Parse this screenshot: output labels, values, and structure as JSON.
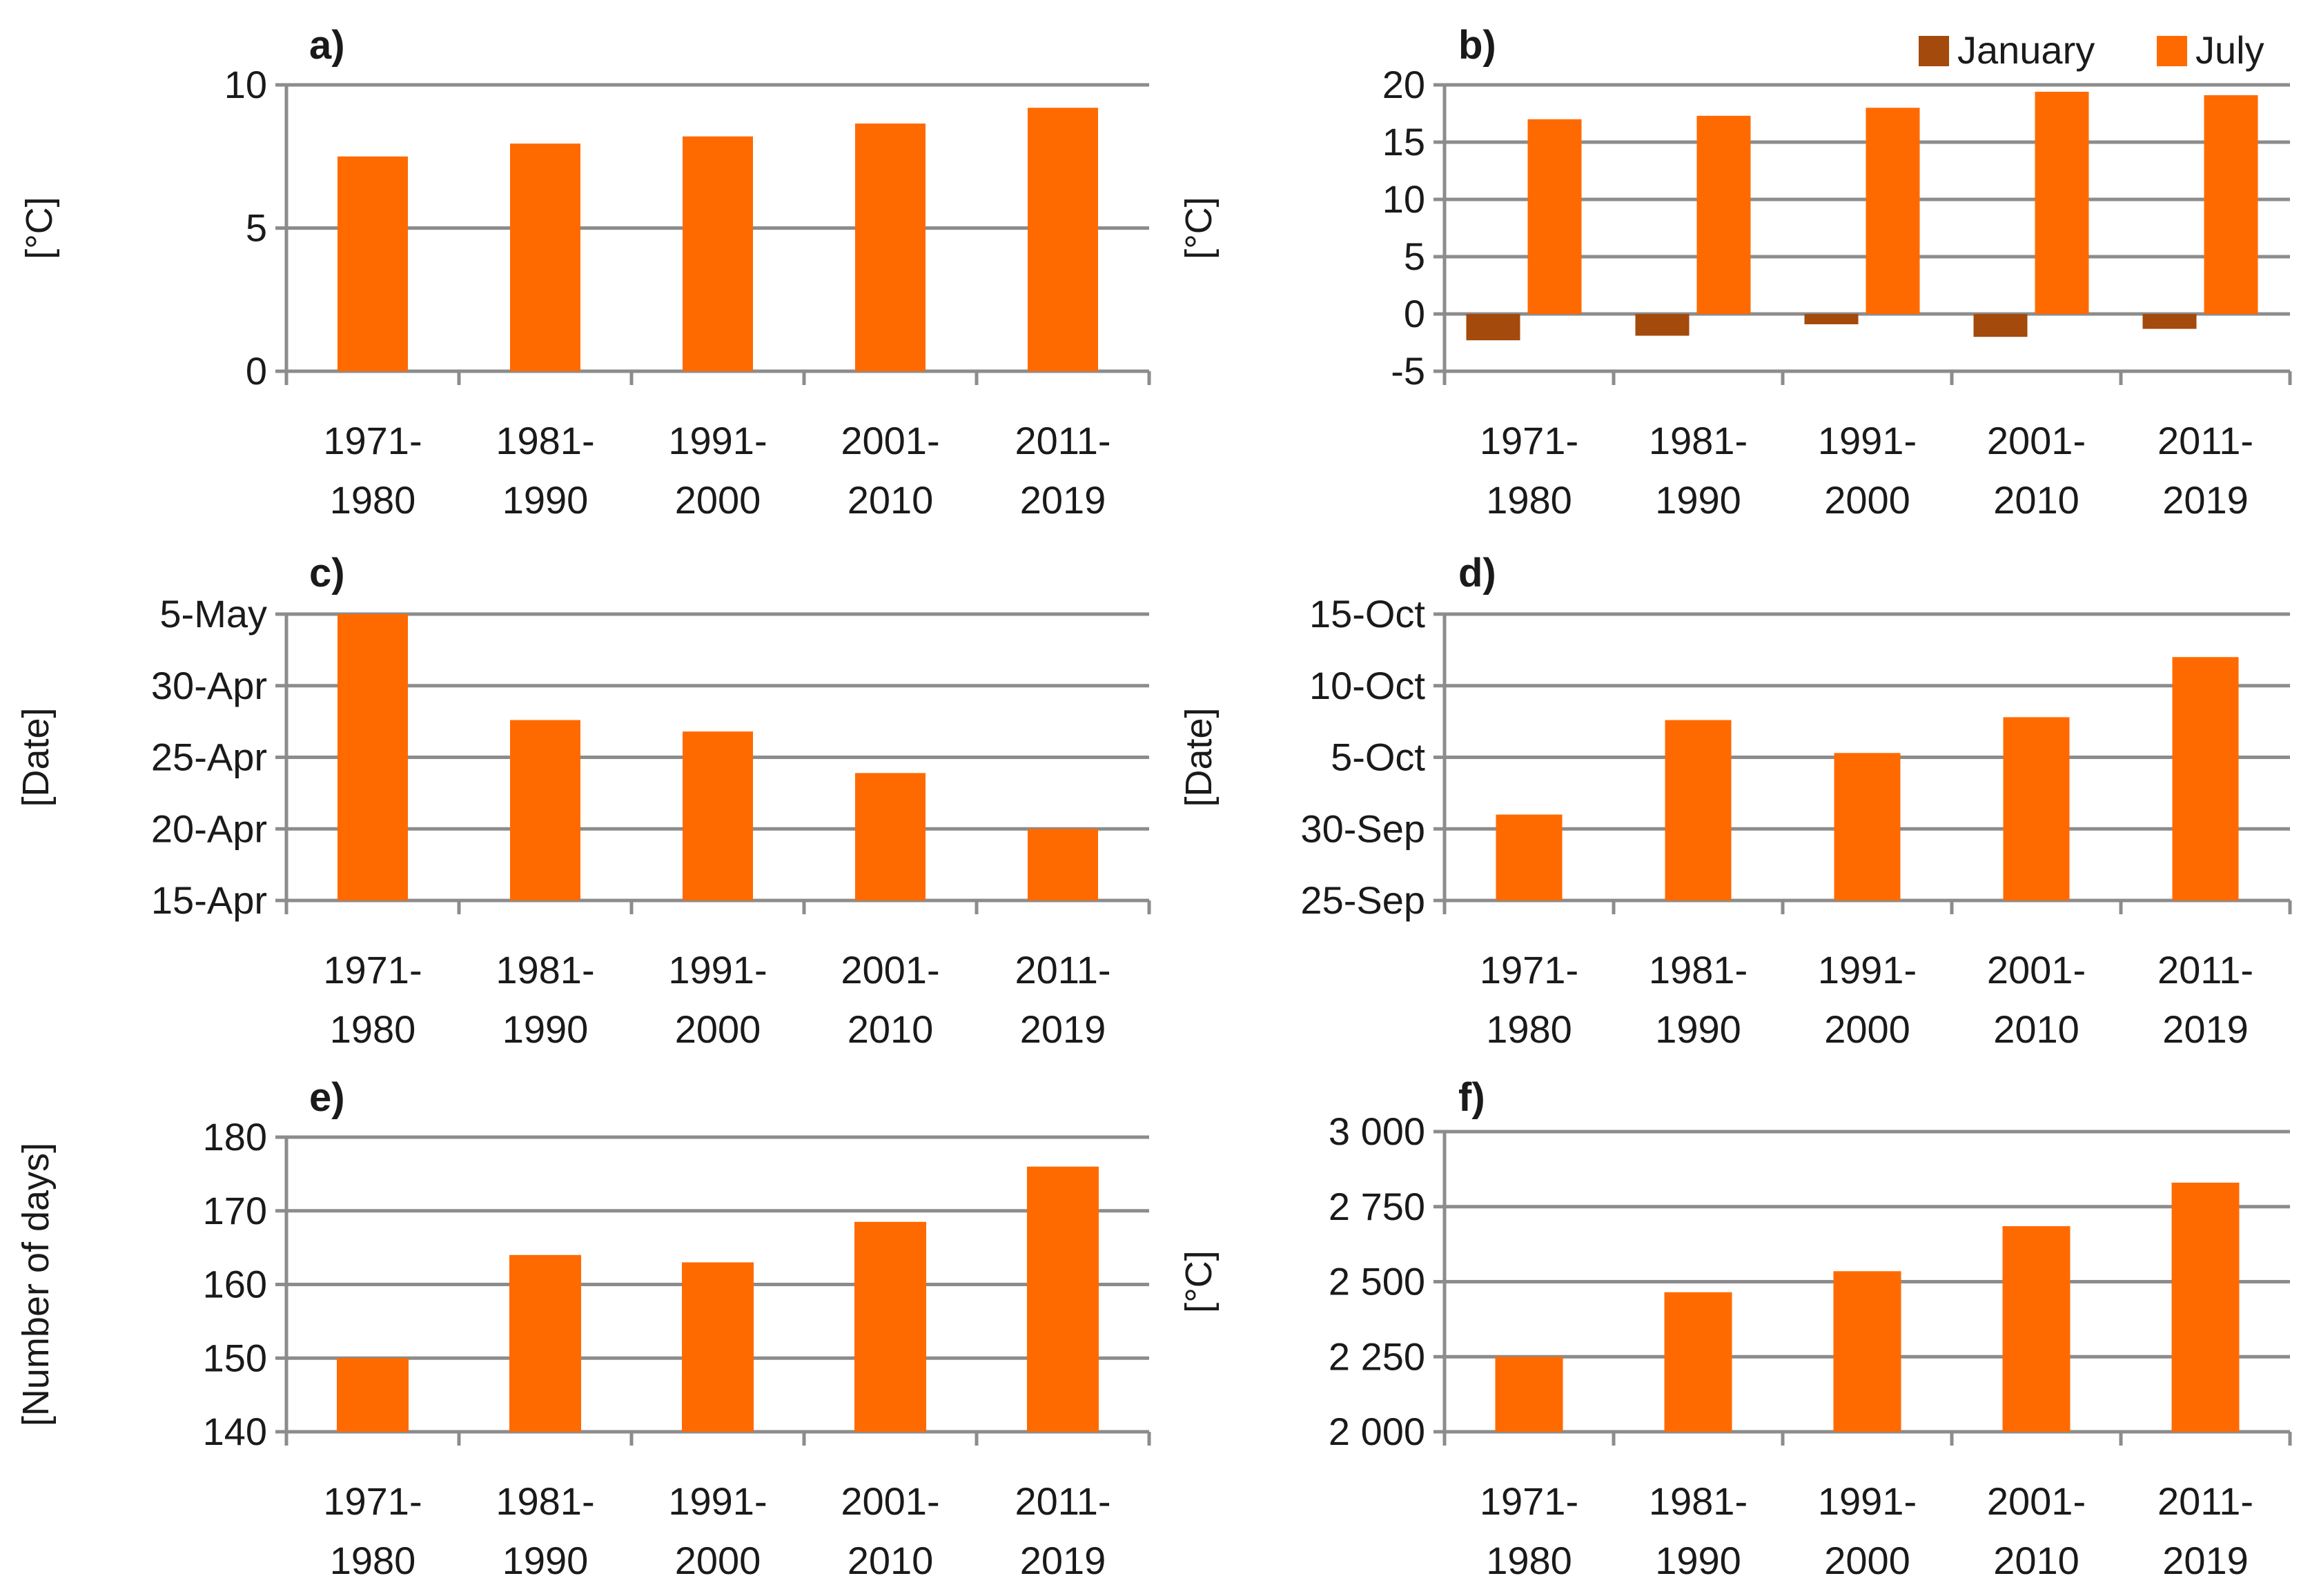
{
  "colors": {
    "primary": "#ff6a00",
    "secondary": "#a34a0c",
    "grid": "#8c8c8c"
  },
  "chart_data": [
    {
      "id": "a",
      "label": "a)",
      "type": "bar",
      "categories": [
        [
          "1971-",
          "1980"
        ],
        [
          "1981-",
          "1990"
        ],
        [
          "1991-",
          "2000"
        ],
        [
          "2001-",
          "2010"
        ],
        [
          "2011-",
          "2019"
        ]
      ],
      "values": [
        7.5,
        7.95,
        8.2,
        8.65,
        9.2
      ],
      "ylabel": "[°C]",
      "ylim": [
        0,
        10
      ],
      "ticks": [
        0,
        5,
        10
      ],
      "tick_labels": [
        "0",
        "5",
        "10"
      ],
      "legend": null
    },
    {
      "id": "b",
      "label": "b)",
      "type": "bar",
      "categories": [
        [
          "1971-",
          "1980"
        ],
        [
          "1981-",
          "1990"
        ],
        [
          "1991-",
          "2000"
        ],
        [
          "2001-",
          "2010"
        ],
        [
          "2011-",
          "2019"
        ]
      ],
      "series": [
        {
          "name": "January",
          "color": "#a34a0c",
          "values": [
            -2.3,
            -1.9,
            -0.9,
            -2.0,
            -1.3
          ]
        },
        {
          "name": "July",
          "color": "#ff6a00",
          "values": [
            17.0,
            17.3,
            18.0,
            19.4,
            19.1
          ]
        }
      ],
      "ylabel": "[°C]",
      "ylim": [
        -5,
        20
      ],
      "ticks": [
        -5,
        0,
        5,
        10,
        15,
        20
      ],
      "tick_labels": [
        "-5",
        "0",
        "5",
        "10",
        "15",
        "20"
      ],
      "legend": "top-right"
    },
    {
      "id": "c",
      "label": "c)",
      "type": "bar",
      "categories": [
        [
          "1971-",
          "1980"
        ],
        [
          "1981-",
          "1990"
        ],
        [
          "1991-",
          "2000"
        ],
        [
          "2001-",
          "2010"
        ],
        [
          "2011-",
          "2019"
        ]
      ],
      "values": [
        125,
        117.6,
        116.8,
        113.9,
        110.0
      ],
      "value_note": "day of year (15-Apr = 105)",
      "ylabel": "[Date]",
      "ylim": [
        105,
        125
      ],
      "ticks": [
        105,
        110,
        115,
        120,
        125
      ],
      "tick_labels": [
        "15-Apr",
        "20-Apr",
        "25-Apr",
        "30-Apr",
        "5-May"
      ],
      "legend": null
    },
    {
      "id": "d",
      "label": "d)",
      "type": "bar",
      "categories": [
        [
          "1971-",
          "1980"
        ],
        [
          "1981-",
          "1990"
        ],
        [
          "1991-",
          "2000"
        ],
        [
          "2001-",
          "2010"
        ],
        [
          "2011-",
          "2019"
        ]
      ],
      "values": [
        274.0,
        280.6,
        278.3,
        280.8,
        285.0
      ],
      "value_note": "day of year (25-Sep = 268)",
      "ylabel": "[Date]",
      "ylim": [
        268,
        288
      ],
      "ticks": [
        268,
        273,
        278,
        283,
        288
      ],
      "tick_labels": [
        "25-Sep",
        "30-Sep",
        "5-Oct",
        "10-Oct",
        "15-Oct"
      ],
      "legend": null
    },
    {
      "id": "e",
      "label": "e)",
      "type": "bar",
      "categories": [
        [
          "1971-",
          "1980"
        ],
        [
          "1981-",
          "1990"
        ],
        [
          "1991-",
          "2000"
        ],
        [
          "2001-",
          "2010"
        ],
        [
          "2011-",
          "2019"
        ]
      ],
      "values": [
        150,
        164,
        163,
        168.5,
        176
      ],
      "ylabel": "[Number of days]",
      "ylim": [
        140,
        180
      ],
      "ticks": [
        140,
        150,
        160,
        170,
        180
      ],
      "tick_labels": [
        "140",
        "150",
        "160",
        "170",
        "180"
      ],
      "legend": null
    },
    {
      "id": "f",
      "label": "f)",
      "type": "bar",
      "categories": [
        [
          "1971-",
          "1980"
        ],
        [
          "1981-",
          "1990"
        ],
        [
          "1991-",
          "2000"
        ],
        [
          "2001-",
          "2010"
        ],
        [
          "2011-",
          "2019"
        ]
      ],
      "values": [
        2250,
        2465,
        2535,
        2685,
        2830
      ],
      "ylabel": "[°C]",
      "ylim": [
        2000,
        3000
      ],
      "ticks": [
        2000,
        2250,
        2500,
        2750,
        3000
      ],
      "tick_labels": [
        "2 000",
        "2 250",
        "2 500",
        "2 750",
        "3 000"
      ],
      "legend": null
    }
  ]
}
